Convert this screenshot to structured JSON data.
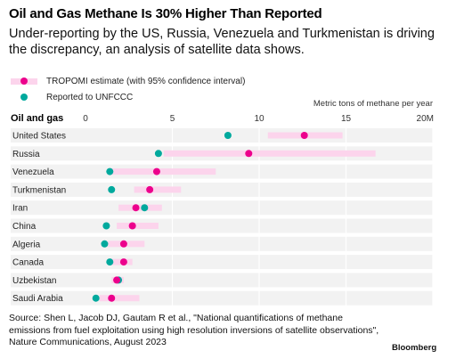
{
  "title": "Oil and Gas Methane Is 30% Higher Than Reported",
  "subtitle": "Under-reporting by the US, Russia, Venezuela and Turkmenistan is driving the discrepancy, an analysis of satellite data shows.",
  "source": "Source: Shen L, Jacob DJ, Gautam R et al., \"National quantifications of methane emissions from fuel exploitation using high resolution inversions of satellite observations\", Nature Communications, August 2023",
  "brand": "Bloomberg",
  "colors": {
    "tropomi": "#ec008c",
    "tropomi_ci": "#fcd4ec",
    "unfccc": "#00a99d",
    "row_band": "#f2f2f2"
  },
  "chart_data": {
    "type": "scatter",
    "legend": [
      {
        "key": "tropomi",
        "label": "TROPOMI estimate (with 95% confidence interval)"
      },
      {
        "key": "unfccc",
        "label": "Reported to UNFCCC"
      }
    ],
    "legend_position": "top-left",
    "row_header": "Oil and gas",
    "xlabel": "Metric tons of methane per year",
    "xlim": [
      0,
      20
    ],
    "xticks": [
      {
        "value": 0,
        "label": "0"
      },
      {
        "value": 5,
        "label": "5"
      },
      {
        "value": 10,
        "label": "10"
      },
      {
        "value": 15,
        "label": "15"
      },
      {
        "value": 20,
        "label": "20M"
      }
    ],
    "grid": true,
    "categories": [
      "United States",
      "Russia",
      "Venezuela",
      "Turkmenistan",
      "Iran",
      "China",
      "Algeria",
      "Canada",
      "Uzbekistan",
      "Saudi Arabia"
    ],
    "series": [
      {
        "key": "tropomi",
        "name": "TROPOMI estimate (with 95% confidence interval)",
        "values": [
          12.6,
          9.4,
          4.1,
          3.7,
          2.9,
          2.7,
          2.2,
          2.2,
          1.8,
          1.5
        ],
        "ci_low": [
          10.5,
          4.5,
          1.3,
          2.8,
          1.9,
          1.8,
          1.3,
          1.3,
          1.5,
          0.8
        ],
        "ci_high": [
          14.8,
          16.7,
          7.5,
          5.5,
          4.4,
          4.2,
          3.4,
          2.7,
          2.2,
          3.1
        ]
      },
      {
        "key": "unfccc",
        "name": "Reported to UNFCCC",
        "values": [
          8.2,
          4.2,
          1.4,
          1.5,
          3.4,
          1.2,
          1.1,
          1.4,
          1.9,
          0.6
        ]
      }
    ]
  }
}
